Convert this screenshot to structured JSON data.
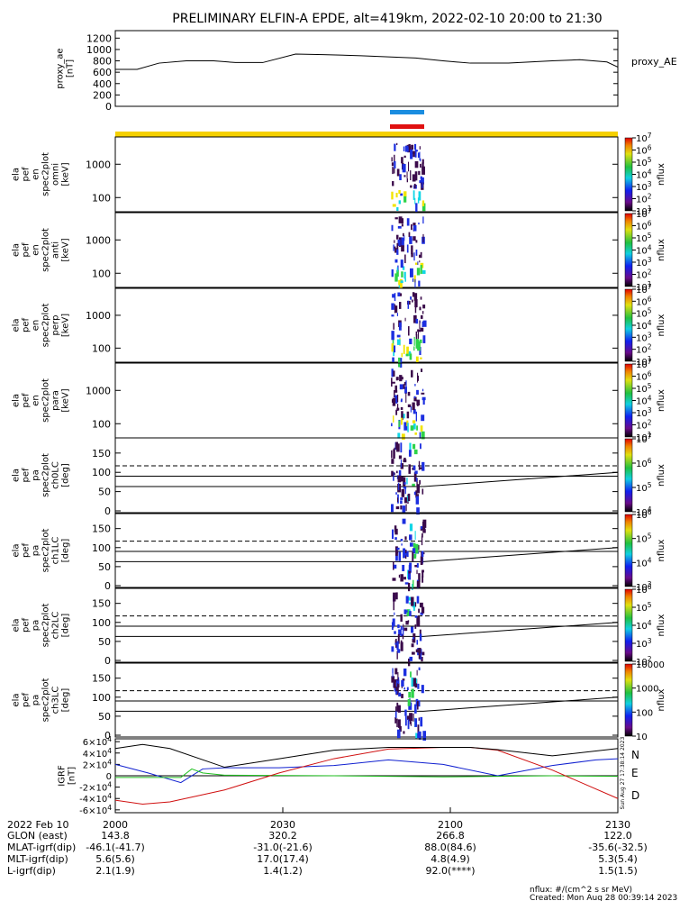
{
  "title": "PRELIMINARY ELFIN-A EPDE, alt=419km, 2022-02-10 20:00 to 21:30",
  "colors": {
    "blue_bar": "#1a8de0",
    "red_bar": "#e01010",
    "yellow_bar": "#f5d000",
    "spec_dark": "#3a0a4a",
    "spec_blue": "#1c2fe0",
    "spec_cyan": "#12d6e6",
    "spec_green": "#2ed34a",
    "spec_yellow": "#f2e400"
  },
  "chart_data": [
    {
      "type": "line",
      "ylabel": "proxy_ae\n[nT]",
      "legend": "proxy_AE",
      "yticks": [
        "0",
        "200",
        "400",
        "600",
        "800",
        "1000",
        "1200"
      ],
      "ylim": [
        0,
        1300
      ],
      "x": [
        0,
        4,
        8,
        13,
        18,
        22,
        27,
        33,
        38,
        45,
        55,
        60,
        65,
        72,
        80,
        85,
        90,
        92
      ],
      "values": [
        650,
        650,
        760,
        800,
        800,
        770,
        770,
        920,
        910,
        890,
        850,
        800,
        760,
        760,
        800,
        820,
        780,
        690
      ]
    },
    {
      "type": "heatmap",
      "ylabel": "ela\npef\nen\nspec2plot\nomni\n[keV]",
      "yticks": [
        "100",
        "1000"
      ],
      "cbar_ticks": [
        "10^1",
        "10^2",
        "10^3",
        "10^4",
        "10^5",
        "10^6",
        "10^7"
      ],
      "cbar_label": "nflux"
    },
    {
      "type": "heatmap",
      "ylabel": "ela\npef\nen\nspec2plot\nanti\n[keV]",
      "yticks": [
        "100",
        "1000"
      ],
      "cbar_ticks": [
        "10^1",
        "10^2",
        "10^3",
        "10^4",
        "10^5",
        "10^6",
        "10^7"
      ],
      "cbar_label": "nflux"
    },
    {
      "type": "heatmap",
      "ylabel": "ela\npef\nen\nspec2plot\nperp\n[keV]",
      "yticks": [
        "100",
        "1000"
      ],
      "cbar_ticks": [
        "10^1",
        "10^2",
        "10^3",
        "10^4",
        "10^5",
        "10^6",
        "10^7"
      ],
      "cbar_label": "nflux"
    },
    {
      "type": "heatmap",
      "ylabel": "ela\npef\nen\nspec2plot\npara\n[keV]",
      "yticks": [
        "100",
        "1000"
      ],
      "cbar_ticks": [
        "10^1",
        "10^2",
        "10^3",
        "10^4",
        "10^5",
        "10^6",
        "10^7"
      ],
      "cbar_label": "nflux"
    },
    {
      "type": "heatmap",
      "ylabel": "ela\npef\npa\nspec2plot\nch0LC\n[deg]",
      "yticks": [
        "0",
        "50",
        "100",
        "150"
      ],
      "cbar_ticks": [
        "10^4",
        "10^5",
        "10^6",
        "10^7"
      ],
      "cbar_label": "nflux"
    },
    {
      "type": "heatmap",
      "ylabel": "ela\npef\npa\nspec2plot\nch1LC\n[deg]",
      "yticks": [
        "0",
        "50",
        "100",
        "150"
      ],
      "cbar_ticks": [
        "10^3",
        "10^4",
        "10^5",
        "10^6"
      ],
      "cbar_label": "nflux"
    },
    {
      "type": "heatmap",
      "ylabel": "ela\npef\npa\nspec2plot\nch2LC\n[deg]",
      "yticks": [
        "0",
        "50",
        "100",
        "150"
      ],
      "cbar_ticks": [
        "10^2",
        "10^3",
        "10^4",
        "10^5",
        "10^6"
      ],
      "cbar_label": "nflux"
    },
    {
      "type": "heatmap",
      "ylabel": "ela\npef\npa\nspec2plot\nch3LC\n[deg]",
      "yticks": [
        "0",
        "50",
        "100",
        "150"
      ],
      "cbar_ticks": [
        "10",
        "100",
        "1000",
        "10000"
      ],
      "cbar_label": "nflux"
    },
    {
      "type": "line",
      "ylabel": "IGRF\n[nT]",
      "yticks": [
        "-6×10^4",
        "-4×10^4",
        "-2×10^4",
        "0",
        "2×10^4",
        "4×10^4",
        "6×10^4"
      ],
      "ylim": [
        -65000,
        65000
      ],
      "series": [
        {
          "name": "N",
          "color": "#1020d0",
          "x": [
            0,
            6,
            12,
            16,
            20,
            30,
            40,
            50,
            60,
            70,
            80,
            88,
            92
          ],
          "values": [
            20000,
            5000,
            -12000,
            12000,
            14000,
            14000,
            18000,
            28000,
            20000,
            0,
            18000,
            28000,
            30000
          ]
        },
        {
          "name": "E",
          "color": "#20c020",
          "x": [
            0,
            12,
            14,
            16,
            20,
            40,
            60,
            80,
            92
          ],
          "values": [
            -3000,
            -3000,
            12000,
            5000,
            1000,
            0,
            -2000,
            0,
            -1000
          ]
        },
        {
          "name": "D",
          "color": "#d01010",
          "x": [
            0,
            5,
            10,
            20,
            30,
            40,
            50,
            60,
            65,
            70,
            80,
            92
          ],
          "values": [
            -43000,
            -50000,
            -46000,
            -25000,
            5000,
            30000,
            47000,
            50000,
            50000,
            45000,
            10000,
            -40000
          ]
        },
        {
          "name": "",
          "color": "#000000",
          "x": [
            0,
            5,
            10,
            20,
            30,
            40,
            50,
            60,
            65,
            70,
            80,
            92
          ],
          "values": [
            48000,
            55000,
            48000,
            15000,
            30000,
            45000,
            50000,
            50000,
            50000,
            46000,
            35000,
            48000
          ]
        }
      ]
    }
  ],
  "side_stamp": "Sun Aug 27 17:38:14 2023",
  "footer": {
    "row_labels": [
      "2022 Feb 10",
      "GLON (east)",
      "MLAT-igrf(dip)",
      "MLT-igrf(dip)",
      "L-igrf(dip)"
    ],
    "columns": [
      [
        "2000",
        "143.8",
        "-46.1(-41.7)",
        "5.6(5.6)",
        "2.1(1.9)"
      ],
      [
        "2030",
        "320.2",
        "-31.0(-21.6)",
        "17.0(17.4)",
        "1.4(1.2)"
      ],
      [
        "2100",
        "266.8",
        "88.0(84.6)",
        "4.8(4.9)",
        "92.0(****)"
      ],
      [
        "2130",
        "122.0",
        "-35.6(-32.5)",
        "5.3(5.4)",
        "1.5(1.5)"
      ]
    ],
    "note1": "nflux: #/(cm^2 s sr MeV)",
    "note2": "Created: Mon Aug 28 00:39:14 2023"
  }
}
